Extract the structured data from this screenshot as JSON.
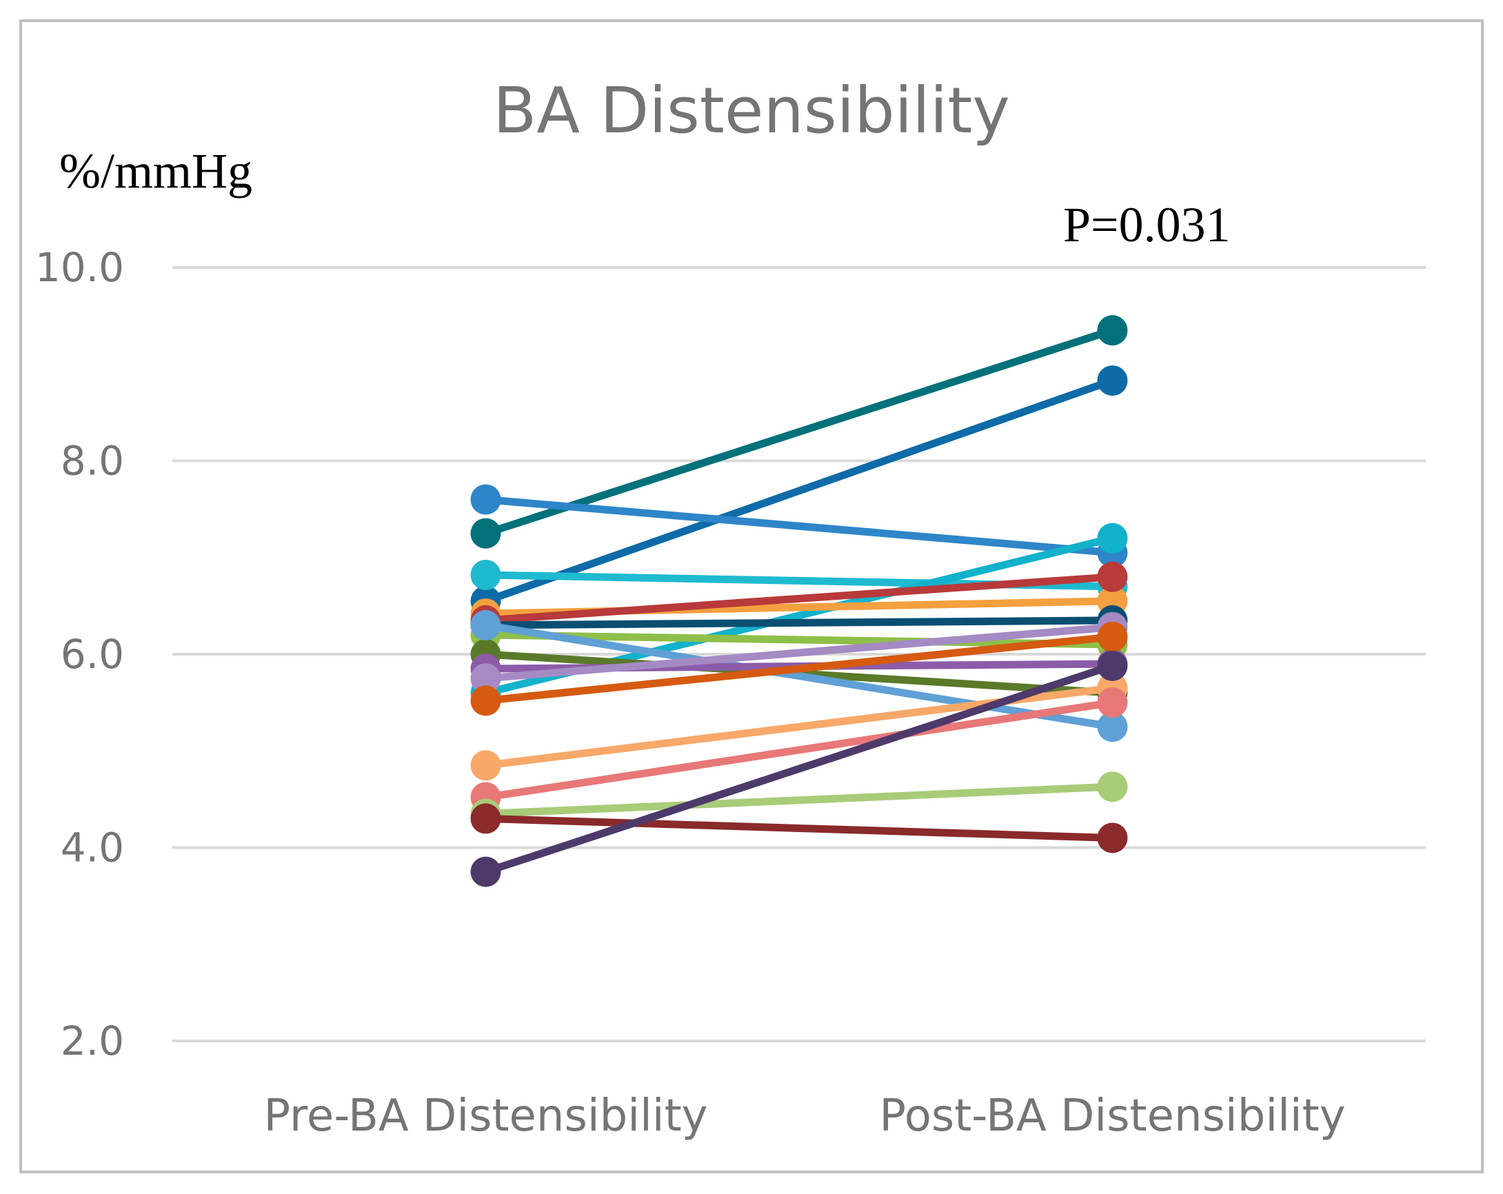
{
  "chart_data": {
    "type": "line",
    "title": "BA Distensibility",
    "ylabel": "%/mmHg",
    "annotation": "P=0.031",
    "categories": [
      "Pre-BA Distensibility",
      "Post-BA Distensibility"
    ],
    "ylim": [
      2.0,
      10.0
    ],
    "yticks": [
      "2.0",
      "4.0",
      "6.0",
      "8.0",
      "10.0"
    ],
    "grid": true,
    "legend": "none",
    "series": [
      {
        "color": "#02717a",
        "values": [
          7.25,
          9.35
        ]
      },
      {
        "color": "#0f6ba8",
        "values": [
          6.55,
          8.83
        ]
      },
      {
        "color": "#2e86c8",
        "values": [
          7.6,
          7.05
        ]
      },
      {
        "color": "#1fbad0",
        "values": [
          6.82,
          6.7
        ]
      },
      {
        "color": "#12b2cc",
        "values": [
          5.6,
          7.2
        ]
      },
      {
        "color": "#f4a040",
        "values": [
          6.42,
          6.55
        ]
      },
      {
        "color": "#b83a3a",
        "values": [
          6.35,
          6.8
        ]
      },
      {
        "color": "#0a4f72",
        "values": [
          6.3,
          6.35
        ]
      },
      {
        "color": "#8fbf4a",
        "values": [
          6.2,
          6.1
        ]
      },
      {
        "color": "#5a7a2a",
        "values": [
          6.0,
          5.6
        ]
      },
      {
        "color": "#5fa0d6",
        "values": [
          6.3,
          5.25
        ]
      },
      {
        "color": "#8c5ca8",
        "values": [
          5.85,
          5.9
        ]
      },
      {
        "color": "#a58ac4",
        "values": [
          5.75,
          6.28
        ]
      },
      {
        "color": "#d65a10",
        "values": [
          5.52,
          6.18
        ]
      },
      {
        "color": "#f8a868",
        "values": [
          4.85,
          5.65
        ]
      },
      {
        "color": "#e87878",
        "values": [
          4.52,
          5.5
        ]
      },
      {
        "color": "#a8cc78",
        "values": [
          4.35,
          4.63
        ]
      },
      {
        "color": "#8a2a2a",
        "values": [
          4.3,
          4.1
        ]
      },
      {
        "color": "#4e3a6a",
        "values": [
          3.75,
          5.88
        ]
      }
    ]
  }
}
